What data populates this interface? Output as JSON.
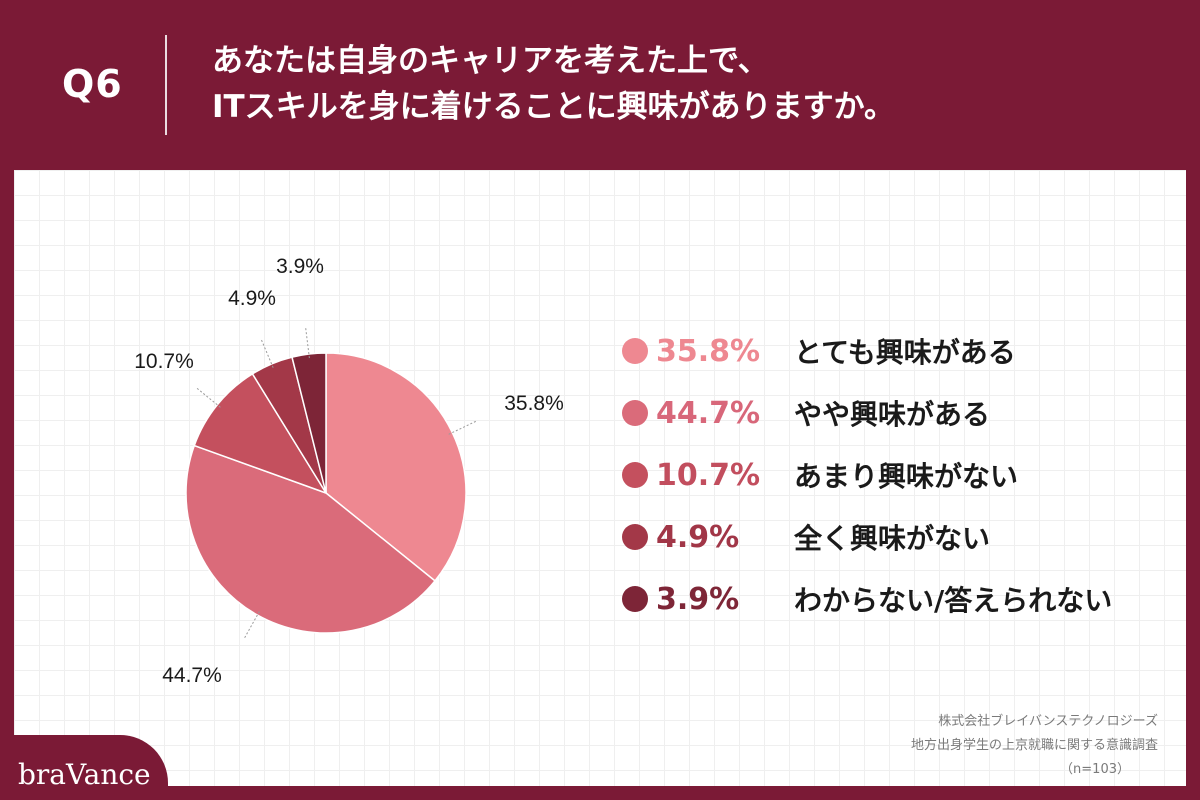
{
  "header": {
    "question": "Q6",
    "title_line1": "あなたは自身のキャリアを考えた上で、",
    "title_line2": "ITスキルを身に着けることに興味がありますか。"
  },
  "chart_data": {
    "type": "pie",
    "categories": [
      "とても興味がある",
      "やや興味がある",
      "あまり興味がない",
      "全く興味がない",
      "わからない/答えられない"
    ],
    "values": [
      35.8,
      44.7,
      10.7,
      4.9,
      3.9
    ],
    "labels": [
      "35.8%",
      "44.7%",
      "10.7%",
      "4.9%",
      "3.9%"
    ],
    "colors": [
      "#ee8891",
      "#da6b7a",
      "#c4505e",
      "#a33848",
      "#7d2537"
    ],
    "legend_placement": "right"
  },
  "legend_pct_colors": [
    "#ee8891",
    "#d8677a",
    "#c24e5e",
    "#a13647",
    "#7e2637"
  ],
  "source": {
    "company": "株式会社ブレイバンステクノロジーズ",
    "survey": "地方出身学生の上京就職に関する意識調査",
    "sample": "（n=103）"
  },
  "logo": {
    "text": "braVance"
  }
}
